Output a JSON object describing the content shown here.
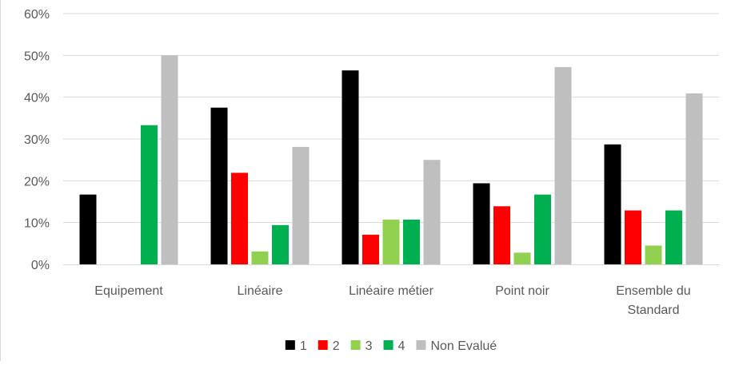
{
  "chart_data": {
    "type": "bar",
    "categories": [
      [
        "Equipement"
      ],
      [
        "Linéaire"
      ],
      [
        "Linéaire métier"
      ],
      [
        "Point noir"
      ],
      [
        "Ensemble du",
        "Standard"
      ]
    ],
    "series": [
      {
        "name": "1",
        "color": "#000000",
        "values": [
          16.7,
          37.5,
          46.4,
          19.4,
          28.7
        ]
      },
      {
        "name": "2",
        "color": "#ff0000",
        "values": [
          0,
          21.9,
          7.1,
          13.9,
          12.9
        ]
      },
      {
        "name": "3",
        "color": "#92d050",
        "values": [
          0,
          3.1,
          10.7,
          2.8,
          4.5
        ]
      },
      {
        "name": "4",
        "color": "#00b050",
        "values": [
          33.3,
          9.4,
          10.7,
          16.7,
          12.9
        ]
      },
      {
        "name": "Non Evalué",
        "color": "#bfbfbf",
        "values": [
          50.0,
          28.1,
          25.0,
          47.2,
          40.9
        ]
      }
    ],
    "ylim": [
      0,
      60
    ],
    "yticks": [
      "0%",
      "10%",
      "20%",
      "30%",
      "40%",
      "50%",
      "60%"
    ],
    "grid": true,
    "legend_position": "bottom"
  }
}
